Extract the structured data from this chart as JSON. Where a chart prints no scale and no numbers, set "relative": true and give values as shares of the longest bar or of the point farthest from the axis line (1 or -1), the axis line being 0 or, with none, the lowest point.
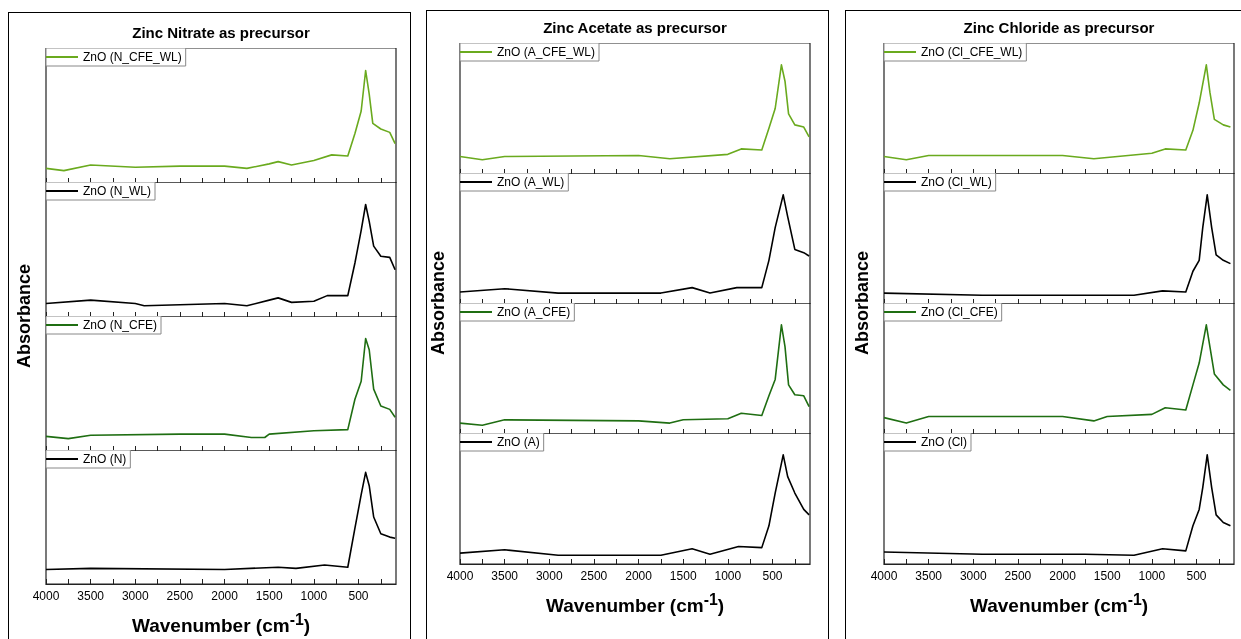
{
  "chart_data": [
    {
      "type": "line",
      "relative": true,
      "title": "Zinc Nitrate as precursor",
      "xlim": [
        4000,
        80
      ],
      "xticks": [
        4000,
        {
          "value": 3750,
          "label": null
        },
        3500,
        {
          "value": 3250,
          "label": null
        },
        3000,
        {
          "value": 2750,
          "label": null
        },
        2500,
        {
          "value": 2250,
          "label": null
        },
        2000,
        {
          "value": 1750,
          "label": null
        },
        1500,
        {
          "value": 1250,
          "label": null
        },
        1000,
        {
          "value": 750,
          "label": null
        },
        500,
        {
          "value": 250,
          "label": null
        }
      ],
      "tick_labels": false,
      "legend": "top left",
      "series": [
        {
          "name": "ZnO (N_CFE_WL)",
          "color": "#6aaa1e",
          "x": [
            4000,
            3800,
            3500,
            3000,
            2500,
            2000,
            1750,
            1500,
            1400,
            1250,
            1000,
            800,
            620,
            540,
            470,
            420,
            380,
            340,
            250,
            150,
            90
          ],
          "values": [
            0.13,
            0.11,
            0.16,
            0.14,
            0.15,
            0.15,
            0.13,
            0.17,
            0.19,
            0.16,
            0.2,
            0.25,
            0.24,
            0.44,
            0.64,
            1.0,
            0.79,
            0.53,
            0.48,
            0.45,
            0.35
          ]
        }
      ]
    },
    {
      "type": "line",
      "relative": true,
      "ylabel": "Absorbance",
      "xlim": [
        4000,
        80
      ],
      "xticks": [
        4000,
        {
          "value": 3750,
          "label": null
        },
        3500,
        {
          "value": 3250,
          "label": null
        },
        3000,
        {
          "value": 2750,
          "label": null
        },
        2500,
        {
          "value": 2250,
          "label": null
        },
        2000,
        {
          "value": 1750,
          "label": null
        },
        1500,
        {
          "value": 1250,
          "label": null
        },
        1000,
        {
          "value": 750,
          "label": null
        },
        500,
        {
          "value": 250,
          "label": null
        }
      ],
      "tick_labels": false,
      "legend": "top left",
      "series": [
        {
          "name": "ZnO (N_WL)",
          "color": "#000000",
          "x": [
            4000,
            3500,
            3000,
            2900,
            2000,
            1750,
            1500,
            1400,
            1250,
            1000,
            850,
            620,
            540,
            470,
            420,
            380,
            330,
            250,
            150,
            90
          ],
          "values": [
            0.12,
            0.15,
            0.12,
            0.1,
            0.12,
            0.1,
            0.15,
            0.17,
            0.13,
            0.14,
            0.19,
            0.19,
            0.48,
            0.77,
            1.0,
            0.85,
            0.63,
            0.54,
            0.53,
            0.42
          ]
        }
      ]
    },
    {
      "type": "line",
      "relative": true,
      "xlim": [
        4000,
        80
      ],
      "xticks": [
        4000,
        {
          "value": 3750,
          "label": null
        },
        3500,
        {
          "value": 3250,
          "label": null
        },
        3000,
        {
          "value": 2750,
          "label": null
        },
        2500,
        {
          "value": 2250,
          "label": null
        },
        2000,
        {
          "value": 1750,
          "label": null
        },
        1500,
        {
          "value": 1250,
          "label": null
        },
        1000,
        {
          "value": 750,
          "label": null
        },
        500,
        {
          "value": 250,
          "label": null
        }
      ],
      "tick_labels": false,
      "legend": "top left",
      "series": [
        {
          "name": "ZnO (N_CFE)",
          "color": "#1f6e12",
          "x": [
            4000,
            3750,
            3500,
            2500,
            2000,
            1700,
            1550,
            1500,
            1000,
            620,
            540,
            470,
            420,
            380,
            330,
            250,
            150,
            90
          ],
          "values": [
            0.13,
            0.11,
            0.14,
            0.15,
            0.15,
            0.12,
            0.12,
            0.15,
            0.18,
            0.19,
            0.46,
            0.62,
            1.0,
            0.9,
            0.55,
            0.4,
            0.37,
            0.3
          ]
        }
      ]
    },
    {
      "type": "line",
      "relative": true,
      "xlabel": "Wavenumber (cm$^{-1}$)",
      "xlim": [
        4000,
        80
      ],
      "xticks": [
        4000,
        {
          "value": 3750,
          "label": null
        },
        3500,
        {
          "value": 3250,
          "label": null
        },
        3000,
        {
          "value": 2750,
          "label": null
        },
        2500,
        {
          "value": 2250,
          "label": null
        },
        2000,
        {
          "value": 1750,
          "label": null
        },
        1500,
        {
          "value": 1250,
          "label": null
        },
        1000,
        {
          "value": 750,
          "label": null
        },
        500,
        {
          "value": 250,
          "label": null
        }
      ],
      "tick_labels": "x",
      "legend": "top left",
      "series": [
        {
          "name": "ZnO (N)",
          "color": "#000000",
          "x": [
            4000,
            3500,
            2000,
            1400,
            1200,
            880,
            620,
            540,
            470,
            420,
            380,
            330,
            250,
            150,
            90
          ],
          "values": [
            0.13,
            0.14,
            0.13,
            0.15,
            0.14,
            0.17,
            0.15,
            0.5,
            0.8,
            1.0,
            0.88,
            0.6,
            0.45,
            0.42,
            0.41
          ]
        }
      ]
    },
    {
      "type": "line",
      "relative": true,
      "title": "Zinc Acetate as precursor",
      "xlim": [
        4000,
        80
      ],
      "xticks": [
        4000,
        {
          "value": 3750,
          "label": null
        },
        3500,
        {
          "value": 3250,
          "label": null
        },
        3000,
        {
          "value": 2750,
          "label": null
        },
        2500,
        {
          "value": 2250,
          "label": null
        },
        2000,
        {
          "value": 1750,
          "label": null
        },
        1500,
        {
          "value": 1250,
          "label": null
        },
        1000,
        {
          "value": 750,
          "label": null
        },
        500,
        {
          "value": 250,
          "label": null
        }
      ],
      "tick_labels": false,
      "legend": "top left",
      "series": [
        {
          "name": "ZnO (A_CFE_WL)",
          "color": "#6aaa1e",
          "x": [
            4000,
            3750,
            3500,
            2000,
            1650,
            1000,
            850,
            620,
            540,
            470,
            400,
            360,
            320,
            250,
            150,
            90
          ],
          "values": [
            0.16,
            0.13,
            0.16,
            0.17,
            0.14,
            0.18,
            0.23,
            0.22,
            0.42,
            0.6,
            1.0,
            0.85,
            0.55,
            0.45,
            0.43,
            0.34
          ]
        }
      ]
    },
    {
      "type": "line",
      "relative": true,
      "ylabel": "Absorbance",
      "xlim": [
        4000,
        80
      ],
      "xticks": [
        4000,
        {
          "value": 3750,
          "label": null
        },
        3500,
        {
          "value": 3250,
          "label": null
        },
        3000,
        {
          "value": 2750,
          "label": null
        },
        2500,
        {
          "value": 2250,
          "label": null
        },
        2000,
        {
          "value": 1750,
          "label": null
        },
        1500,
        {
          "value": 1250,
          "label": null
        },
        1000,
        {
          "value": 750,
          "label": null
        },
        500,
        {
          "value": 250,
          "label": null
        }
      ],
      "tick_labels": false,
      "legend": "top left",
      "series": [
        {
          "name": "ZnO (A_WL)",
          "color": "#000000",
          "x": [
            4000,
            3500,
            2900,
            1750,
            1400,
            1200,
            900,
            620,
            540,
            470,
            380,
            330,
            250,
            150,
            90
          ],
          "values": [
            0.11,
            0.14,
            0.1,
            0.1,
            0.15,
            0.1,
            0.15,
            0.15,
            0.4,
            0.7,
            1.0,
            0.8,
            0.5,
            0.47,
            0.44
          ]
        }
      ]
    },
    {
      "type": "line",
      "relative": true,
      "xlim": [
        4000,
        80
      ],
      "xticks": [
        4000,
        {
          "value": 3750,
          "label": null
        },
        3500,
        {
          "value": 3250,
          "label": null
        },
        3000,
        {
          "value": 2750,
          "label": null
        },
        2500,
        {
          "value": 2250,
          "label": null
        },
        2000,
        {
          "value": 1750,
          "label": null
        },
        1500,
        {
          "value": 1250,
          "label": null
        },
        1000,
        {
          "value": 750,
          "label": null
        },
        500,
        {
          "value": 250,
          "label": null
        }
      ],
      "tick_labels": false,
      "legend": "top left",
      "series": [
        {
          "name": "ZnO (A_CFE)",
          "color": "#1f6e12",
          "x": [
            4000,
            3750,
            3500,
            2000,
            1650,
            1500,
            1000,
            850,
            620,
            540,
            470,
            400,
            360,
            320,
            250,
            150,
            90
          ],
          "values": [
            0.1,
            0.08,
            0.13,
            0.12,
            0.1,
            0.13,
            0.14,
            0.19,
            0.17,
            0.35,
            0.5,
            1.0,
            0.8,
            0.45,
            0.36,
            0.35,
            0.25
          ]
        }
      ]
    },
    {
      "type": "line",
      "relative": true,
      "xlabel": "Wavenumber (cm$^{-1}$)",
      "xlim": [
        4000,
        80
      ],
      "xticks": [
        4000,
        {
          "value": 3750,
          "label": null
        },
        3500,
        {
          "value": 3250,
          "label": null
        },
        3000,
        {
          "value": 2750,
          "label": null
        },
        2500,
        {
          "value": 2250,
          "label": null
        },
        2000,
        {
          "value": 1750,
          "label": null
        },
        1500,
        {
          "value": 1250,
          "label": null
        },
        1000,
        {
          "value": 750,
          "label": null
        },
        500,
        {
          "value": 250,
          "label": null
        }
      ],
      "tick_labels": "x",
      "legend": "top left",
      "series": [
        {
          "name": "ZnO (A)",
          "color": "#000000",
          "x": [
            4000,
            3500,
            2900,
            1750,
            1400,
            1200,
            880,
            620,
            540,
            470,
            380,
            330,
            250,
            150,
            90
          ],
          "values": [
            0.1,
            0.13,
            0.08,
            0.08,
            0.14,
            0.09,
            0.16,
            0.15,
            0.35,
            0.65,
            1.0,
            0.8,
            0.65,
            0.5,
            0.45
          ]
        }
      ]
    },
    {
      "type": "line",
      "relative": true,
      "title": "Zinc Chloride as precursor",
      "xlim": [
        4000,
        80
      ],
      "xticks": [
        4000,
        {
          "value": 3750,
          "label": null
        },
        3500,
        {
          "value": 3250,
          "label": null
        },
        3000,
        {
          "value": 2750,
          "label": null
        },
        2500,
        {
          "value": 2250,
          "label": null
        },
        2000,
        {
          "value": 1750,
          "label": null
        },
        1500,
        {
          "value": 1250,
          "label": null
        },
        1000,
        {
          "value": 750,
          "label": null
        },
        500,
        {
          "value": 250,
          "label": null
        }
      ],
      "tick_labels": false,
      "legend": "top left",
      "series": [
        {
          "name": "ZnO (Cl_CFE_WL)",
          "color": "#6aaa1e",
          "x": [
            4000,
            3750,
            3500,
            2000,
            1650,
            1000,
            850,
            620,
            540,
            470,
            390,
            350,
            300,
            200,
            120
          ],
          "values": [
            0.16,
            0.13,
            0.17,
            0.17,
            0.14,
            0.19,
            0.23,
            0.22,
            0.4,
            0.65,
            1.0,
            0.75,
            0.5,
            0.45,
            0.43
          ]
        }
      ]
    },
    {
      "type": "line",
      "relative": true,
      "ylabel": "Absorbance",
      "xlim": [
        4000,
        80
      ],
      "xticks": [
        4000,
        {
          "value": 3750,
          "label": null
        },
        3500,
        {
          "value": 3250,
          "label": null
        },
        3000,
        {
          "value": 2750,
          "label": null
        },
        2500,
        {
          "value": 2250,
          "label": null
        },
        2000,
        {
          "value": 1750,
          "label": null
        },
        1500,
        {
          "value": 1250,
          "label": null
        },
        1000,
        {
          "value": 750,
          "label": null
        },
        500,
        {
          "value": 250,
          "label": null
        }
      ],
      "tick_labels": false,
      "legend": "top left",
      "series": [
        {
          "name": "ZnO (Cl_WL)",
          "color": "#000000",
          "x": [
            4000,
            2900,
            1750,
            1200,
            880,
            620,
            540,
            470,
            430,
            380,
            330,
            280,
            200,
            120
          ],
          "values": [
            0.1,
            0.08,
            0.08,
            0.08,
            0.12,
            0.11,
            0.3,
            0.4,
            0.7,
            1.0,
            0.7,
            0.45,
            0.4,
            0.37
          ]
        }
      ]
    },
    {
      "type": "line",
      "relative": true,
      "xlim": [
        4000,
        80
      ],
      "xticks": [
        4000,
        {
          "value": 3750,
          "label": null
        },
        3500,
        {
          "value": 3250,
          "label": null
        },
        3000,
        {
          "value": 2750,
          "label": null
        },
        2500,
        {
          "value": 2250,
          "label": null
        },
        2000,
        {
          "value": 1750,
          "label": null
        },
        1500,
        {
          "value": 1250,
          "label": null
        },
        1000,
        {
          "value": 750,
          "label": null
        },
        500,
        {
          "value": 250,
          "label": null
        }
      ],
      "tick_labels": false,
      "legend": "top left",
      "series": [
        {
          "name": "ZnO (Cl_CFE)",
          "color": "#1f6e12",
          "x": [
            4000,
            3750,
            3500,
            2000,
            1650,
            1500,
            1000,
            850,
            620,
            540,
            470,
            390,
            350,
            300,
            200,
            120
          ],
          "values": [
            0.15,
            0.1,
            0.16,
            0.16,
            0.12,
            0.16,
            0.18,
            0.24,
            0.22,
            0.45,
            0.65,
            1.0,
            0.8,
            0.55,
            0.45,
            0.4
          ]
        }
      ]
    },
    {
      "type": "line",
      "relative": true,
      "xlabel": "Wavenumber (cm$^{-1}$)",
      "xlim": [
        4000,
        80
      ],
      "xticks": [
        4000,
        {
          "value": 3750,
          "label": null
        },
        3500,
        {
          "value": 3250,
          "label": null
        },
        3000,
        {
          "value": 2750,
          "label": null
        },
        2500,
        {
          "value": 2250,
          "label": null
        },
        2000,
        {
          "value": 1750,
          "label": null
        },
        1500,
        {
          "value": 1250,
          "label": null
        },
        1000,
        {
          "value": 750,
          "label": null
        },
        500,
        {
          "value": 250,
          "label": null
        }
      ],
      "tick_labels": "x",
      "legend": "top left",
      "series": [
        {
          "name": "ZnO (Cl)",
          "color": "#000000",
          "x": [
            4000,
            2900,
            1750,
            1200,
            880,
            620,
            540,
            470,
            430,
            380,
            330,
            280,
            200,
            120
          ],
          "values": [
            0.11,
            0.09,
            0.09,
            0.08,
            0.14,
            0.12,
            0.35,
            0.5,
            0.7,
            1.0,
            0.7,
            0.45,
            0.38,
            0.35
          ]
        }
      ]
    }
  ]
}
